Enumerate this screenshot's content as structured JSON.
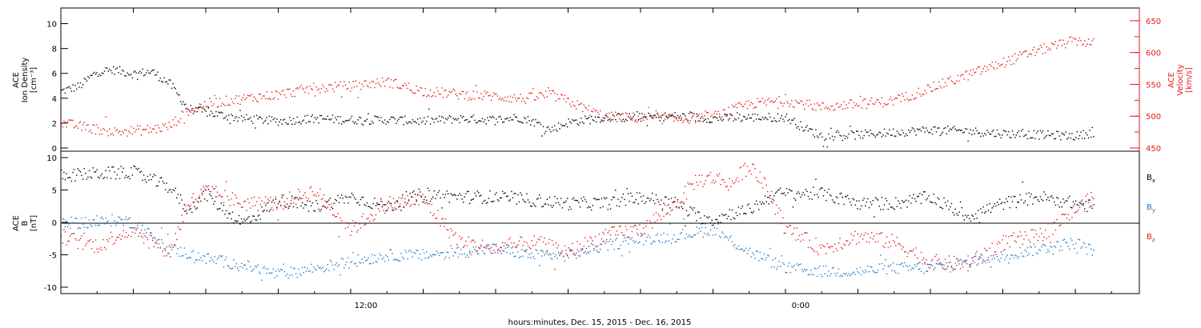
{
  "chart_data": [
    {
      "type": "scatter",
      "panel": "ion-density-velocity",
      "ylabel_lines": [
        "ACE",
        "Ion Density",
        "[cm⁻³]"
      ],
      "ylabel_right_lines": [
        "ACE",
        "Velocity",
        "[km/s]"
      ],
      "ylim": [
        0,
        11
      ],
      "ylim_right": [
        450,
        665
      ],
      "yticks": [
        0,
        2,
        4,
        6,
        8,
        10
      ],
      "yticks_right": [
        450,
        500,
        550,
        600,
        650
      ],
      "series": [
        {
          "axis": "left",
          "color": "#000000",
          "keypoints": [
            [
              0,
              4.6
            ],
            [
              0.5,
              5.0
            ],
            [
              1,
              6.2
            ],
            [
              1.5,
              6.3
            ],
            [
              2,
              6.0
            ],
            [
              2.5,
              6.2
            ],
            [
              3,
              5.2
            ],
            [
              3.5,
              3.2
            ],
            [
              4,
              2.9
            ],
            [
              5,
              2.4
            ],
            [
              6,
              2.2
            ],
            [
              7,
              2.4
            ],
            [
              8,
              2.3
            ],
            [
              9,
              2.3
            ],
            [
              10,
              2.2
            ],
            [
              11,
              2.4
            ],
            [
              12,
              2.3
            ],
            [
              12.6,
              2.5
            ],
            [
              13,
              2.2
            ],
            [
              13.5,
              1.5
            ],
            [
              14,
              2.1
            ],
            [
              15,
              2.5
            ],
            [
              16,
              2.5
            ],
            [
              17,
              2.6
            ],
            [
              18,
              2.4
            ],
            [
              19,
              2.5
            ],
            [
              20,
              2.5
            ],
            [
              20.6,
              1.5
            ],
            [
              21,
              1.0
            ],
            [
              22,
              1.1
            ],
            [
              23,
              1.3
            ],
            [
              24,
              1.5
            ],
            [
              25,
              1.4
            ],
            [
              26,
              1.2
            ],
            [
              27,
              1.1
            ],
            [
              28,
              1.0
            ],
            [
              28.5,
              1.3
            ]
          ]
        },
        {
          "axis": "right",
          "color": "#e41a1c",
          "keypoints": [
            [
              0,
              490
            ],
            [
              0.5,
              485
            ],
            [
              1,
              480
            ],
            [
              1.5,
              476
            ],
            [
              2,
              478
            ],
            [
              2.5,
              480
            ],
            [
              3,
              485
            ],
            [
              3.5,
              510
            ],
            [
              4,
              520
            ],
            [
              5,
              528
            ],
            [
              6,
              535
            ],
            [
              7,
              545
            ],
            [
              8,
              548
            ],
            [
              9,
              555
            ],
            [
              10,
              540
            ],
            [
              11,
              535
            ],
            [
              12,
              532
            ],
            [
              12.8,
              528
            ],
            [
              13.5,
              535
            ],
            [
              14.5,
              512
            ],
            [
              15,
              500
            ],
            [
              16,
              498
            ],
            [
              17,
              496
            ],
            [
              18,
              500
            ],
            [
              19,
              520
            ],
            [
              20,
              525
            ],
            [
              21,
              515
            ],
            [
              22,
              520
            ],
            [
              23,
              525
            ],
            [
              24,
              545
            ],
            [
              25,
              565
            ],
            [
              26,
              585
            ],
            [
              27,
              605
            ],
            [
              28,
              620
            ],
            [
              28.5,
              615
            ]
          ]
        }
      ]
    },
    {
      "type": "scatter",
      "panel": "magnetic-field",
      "ylabel_lines": [
        "ACE",
        "B",
        "[nT]"
      ],
      "ylim": [
        -10.5,
        10.5
      ],
      "yticks": [
        -10,
        -5,
        0,
        5,
        10
      ],
      "legend": [
        {
          "label": "B",
          "sub": "x",
          "color": "#000000"
        },
        {
          "label": "B",
          "sub": "y",
          "color": "#1f78c8"
        },
        {
          "label": "B",
          "sub": "z",
          "color": "#e41a1c"
        }
      ],
      "series": [
        {
          "name": "Bx",
          "color": "#000000",
          "keypoints": [
            [
              0,
              7.3
            ],
            [
              1,
              7.6
            ],
            [
              2,
              7.8
            ],
            [
              3,
              5.5
            ],
            [
              3.5,
              2
            ],
            [
              4,
              4.5
            ],
            [
              4.5,
              2
            ],
            [
              5,
              0
            ],
            [
              5.5,
              1.5
            ],
            [
              6,
              3.5
            ],
            [
              7,
              2.5
            ],
            [
              8,
              4
            ],
            [
              9,
              2.5
            ],
            [
              10,
              4.5
            ],
            [
              11,
              4
            ],
            [
              12,
              4
            ],
            [
              13,
              3.5
            ],
            [
              14,
              3
            ],
            [
              15,
              3
            ],
            [
              16,
              4
            ],
            [
              17,
              3
            ],
            [
              17.5,
              1
            ],
            [
              18,
              0.5
            ],
            [
              18.5,
              1.5
            ],
            [
              19,
              2
            ],
            [
              19.7,
              4.5
            ],
            [
              21,
              4.5
            ],
            [
              22,
              3
            ],
            [
              23,
              3
            ],
            [
              24,
              4
            ],
            [
              25,
              1
            ],
            [
              26,
              3
            ],
            [
              27,
              4
            ],
            [
              28,
              3
            ],
            [
              28.5,
              2.5
            ]
          ]
        },
        {
          "name": "By",
          "color": "#1f78c8",
          "keypoints": [
            [
              0,
              0
            ],
            [
              1,
              0
            ],
            [
              1.5,
              0.5
            ],
            [
              2,
              0
            ],
            [
              3,
              -4
            ],
            [
              4,
              -5.5
            ],
            [
              5,
              -6.5
            ],
            [
              6,
              -8
            ],
            [
              7,
              -7
            ],
            [
              8,
              -6
            ],
            [
              9,
              -5
            ],
            [
              10,
              -5
            ],
            [
              11,
              -4.5
            ],
            [
              12,
              -4
            ],
            [
              13,
              -5
            ],
            [
              14,
              -5
            ],
            [
              15,
              -3.5
            ],
            [
              16,
              -2.5
            ],
            [
              17,
              -2
            ],
            [
              18,
              -1
            ],
            [
              19,
              -4.5
            ],
            [
              20,
              -7
            ],
            [
              21,
              -7.5
            ],
            [
              22,
              -7.5
            ],
            [
              23,
              -7
            ],
            [
              24,
              -7
            ],
            [
              25,
              -6
            ],
            [
              26,
              -5
            ],
            [
              27,
              -4
            ],
            [
              28,
              -3
            ],
            [
              28.5,
              -4.5
            ]
          ]
        },
        {
          "name": "Bz",
          "color": "#e41a1c",
          "keypoints": [
            [
              0,
              -2
            ],
            [
              0.5,
              -3
            ],
            [
              1,
              -3.5
            ],
            [
              1.5,
              -2
            ],
            [
              2,
              -1
            ],
            [
              3,
              -4.5
            ],
            [
              3.5,
              3
            ],
            [
              4,
              5
            ],
            [
              5,
              3
            ],
            [
              6,
              3
            ],
            [
              7,
              5
            ],
            [
              8,
              -1
            ],
            [
              9,
              3
            ],
            [
              10,
              3.5
            ],
            [
              11,
              -3
            ],
            [
              12,
              -4
            ],
            [
              13,
              -3
            ],
            [
              14,
              -4.5
            ],
            [
              15,
              -2
            ],
            [
              16,
              -1
            ],
            [
              17,
              3
            ],
            [
              17.5,
              6.5
            ],
            [
              18,
              7
            ],
            [
              18.5,
              6
            ],
            [
              19,
              9
            ],
            [
              19.5,
              5
            ],
            [
              20,
              -1
            ],
            [
              21,
              -4
            ],
            [
              22,
              -2
            ],
            [
              23,
              -3
            ],
            [
              24,
              -6
            ],
            [
              25,
              -6.5
            ],
            [
              26,
              -3
            ],
            [
              27,
              -2
            ],
            [
              28,
              2
            ],
            [
              28.5,
              4
            ]
          ]
        }
      ]
    }
  ],
  "x_axis": {
    "tick_labels": [
      "12:00",
      "0:00"
    ],
    "caption": "hours:minutes, Dec. 15, 2015 - Dec. 16, 2015"
  }
}
